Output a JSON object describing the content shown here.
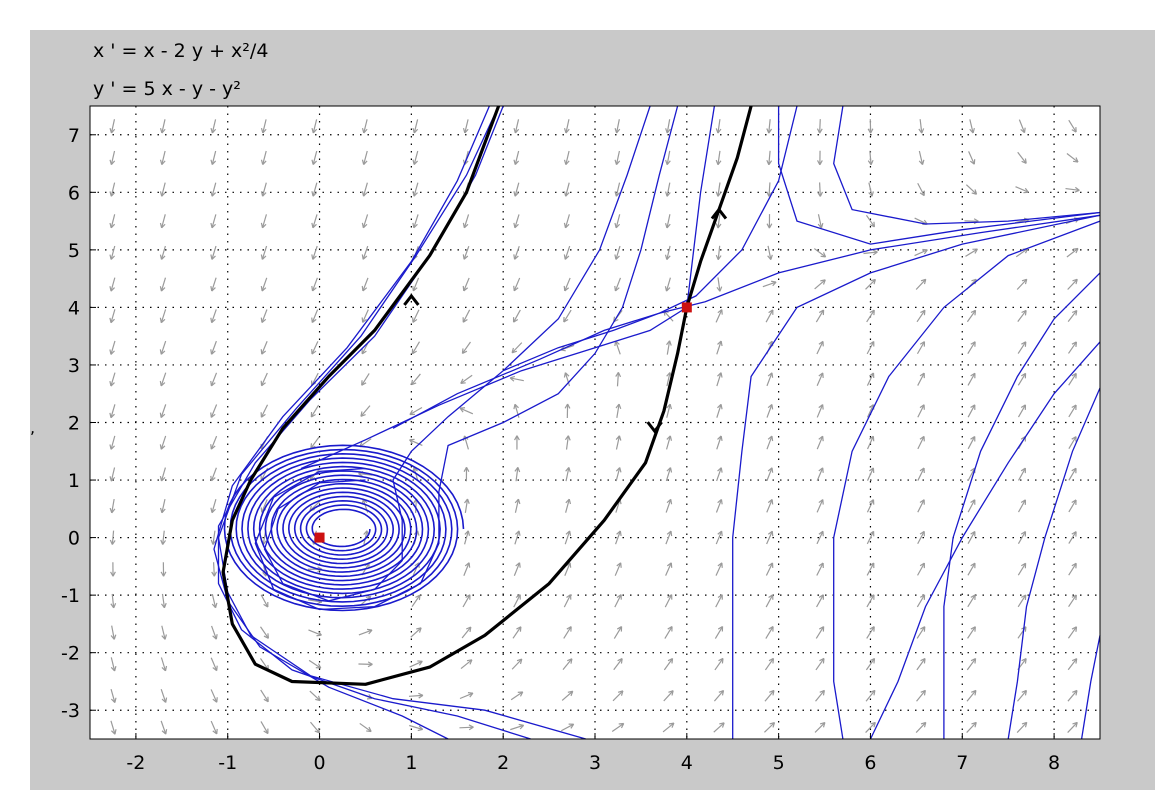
{
  "chart_data": {
    "type": "phase_portrait",
    "title_lines": [
      "x ' = x - 2 y + x²/4",
      "y ' = 5 x - y - y²"
    ],
    "xlim": [
      -2.5,
      8.5
    ],
    "ylim": [
      -3.5,
      7.5
    ],
    "xticks": [
      -2,
      -1,
      0,
      1,
      2,
      3,
      4,
      5,
      6,
      7,
      8
    ],
    "yticks": [
      -3,
      -2,
      -1,
      0,
      1,
      2,
      3,
      4,
      5,
      6,
      7
    ],
    "grid": "dotted",
    "equilibria": [
      {
        "x": 0,
        "y": 0,
        "type": "spiral"
      },
      {
        "x": 4,
        "y": 4,
        "type": "saddle"
      }
    ],
    "separatrix_color": "#000000",
    "trajectory_color": "#1a1acc",
    "equilibrium_color": "#cc1111",
    "arrow_color": "#9a9a9a",
    "separatrices": [
      [
        [
          4.7,
          7.5
        ],
        [
          4.55,
          6.6
        ],
        [
          4.35,
          5.7
        ],
        [
          4.15,
          4.8
        ],
        [
          4.0,
          4.0
        ],
        [
          3.9,
          3.2
        ],
        [
          3.75,
          2.2
        ],
        [
          3.55,
          1.3
        ],
        [
          3.1,
          0.3
        ],
        [
          2.5,
          -0.8
        ],
        [
          1.8,
          -1.7
        ],
        [
          1.2,
          -2.25
        ],
        [
          0.5,
          -2.55
        ],
        [
          -0.3,
          -2.5
        ],
        [
          -0.7,
          -2.2
        ],
        [
          -0.95,
          -1.5
        ],
        [
          -1.05,
          -0.6
        ],
        [
          -0.95,
          0.3
        ],
        [
          -0.75,
          1.0
        ],
        [
          -0.4,
          1.9
        ],
        [
          0.1,
          2.8
        ],
        [
          0.6,
          3.6
        ],
        [
          1.2,
          4.9
        ],
        [
          1.6,
          6.0
        ],
        [
          1.95,
          7.5
        ]
      ]
    ],
    "trajectories": [
      [
        [
          2.0,
          7.5
        ],
        [
          1.7,
          6.3
        ],
        [
          1.2,
          4.9
        ],
        [
          0.6,
          3.5
        ],
        [
          -0.1,
          2.4
        ],
        [
          -0.7,
          1.3
        ],
        [
          -1.1,
          0.2
        ],
        [
          -1.1,
          -0.8
        ],
        [
          -0.85,
          -1.6
        ],
        [
          -0.3,
          -2.3
        ],
        [
          0.6,
          -2.8
        ],
        [
          1.5,
          -3.1
        ],
        [
          2.3,
          -3.5
        ]
      ],
      [
        [
          1.85,
          7.5
        ],
        [
          1.5,
          6.2
        ],
        [
          1.0,
          4.8
        ],
        [
          0.3,
          3.3
        ],
        [
          -0.4,
          2.1
        ],
        [
          -0.95,
          0.9
        ],
        [
          -1.15,
          -0.2
        ],
        [
          -1.0,
          -1.1
        ],
        [
          -0.65,
          -1.9
        ],
        [
          0.1,
          -2.6
        ],
        [
          0.9,
          -3.1
        ],
        [
          1.4,
          -3.5
        ]
      ],
      [
        [
          1.95,
          7.5
        ],
        [
          1.6,
          6.3
        ],
        [
          1.05,
          4.9
        ],
        [
          0.45,
          3.5
        ],
        [
          -0.25,
          2.25
        ],
        [
          -0.85,
          1.1
        ],
        [
          -1.1,
          0.0
        ],
        [
          -1.0,
          -0.95
        ],
        [
          -0.75,
          -1.7
        ],
        [
          -0.1,
          -2.4
        ],
        [
          0.8,
          -2.8
        ],
        [
          1.8,
          -3.0
        ],
        [
          2.9,
          -3.5
        ]
      ],
      [
        [
          3.6,
          7.5
        ],
        [
          3.35,
          6.3
        ],
        [
          3.05,
          5.0
        ],
        [
          2.6,
          3.8
        ],
        [
          2.0,
          2.9
        ],
        [
          1.4,
          2.1
        ],
        [
          1.0,
          1.5
        ],
        [
          0.8,
          1.0
        ],
        [
          0.9,
          0.3
        ],
        [
          0.9,
          -0.4
        ],
        [
          0.6,
          -0.9
        ],
        [
          0.1,
          -1.1
        ],
        [
          -0.4,
          -0.8
        ],
        [
          -0.6,
          -0.2
        ],
        [
          -0.45,
          0.5
        ],
        [
          0.0,
          0.95
        ],
        [
          0.5,
          1.0
        ]
      ],
      [
        [
          3.9,
          7.5
        ],
        [
          3.7,
          6.3
        ],
        [
          3.5,
          5.0
        ],
        [
          3.3,
          4.0
        ],
        [
          3.0,
          3.2
        ],
        [
          2.6,
          2.5
        ],
        [
          2.0,
          2.0
        ],
        [
          1.4,
          1.6
        ],
        [
          1.3,
          0.8
        ],
        [
          1.3,
          -0.1
        ],
        [
          1.1,
          -0.8
        ],
        [
          0.6,
          -1.2
        ],
        [
          0.0,
          -1.25
        ],
        [
          -0.5,
          -0.9
        ],
        [
          -0.7,
          -0.1
        ],
        [
          -0.5,
          0.7
        ],
        [
          0.0,
          1.15
        ],
        [
          0.5,
          1.2
        ]
      ],
      [
        [
          4.3,
          7.5
        ],
        [
          4.15,
          6.0
        ],
        [
          4.0,
          4.0
        ],
        [
          3.6,
          3.6
        ],
        [
          3.0,
          3.3
        ],
        [
          2.2,
          2.9
        ],
        [
          1.3,
          2.3
        ],
        [
          0.5,
          1.7
        ],
        [
          -0.2,
          1.2
        ]
      ],
      [
        [
          5.2,
          7.5
        ],
        [
          5.0,
          6.2
        ],
        [
          4.6,
          5.0
        ],
        [
          4.1,
          4.2
        ],
        [
          3.7,
          3.9
        ],
        [
          3.1,
          3.6
        ],
        [
          2.4,
          3.1
        ],
        [
          1.5,
          2.5
        ],
        [
          0.8,
          1.9
        ]
      ],
      [
        [
          8.5,
          5.6
        ],
        [
          7.2,
          5.3
        ],
        [
          6.0,
          5.0
        ],
        [
          5.0,
          4.6
        ],
        [
          4.2,
          4.1
        ],
        [
          3.7,
          3.9
        ],
        [
          3.2,
          3.6
        ],
        [
          2.6,
          3.3
        ],
        [
          2.0,
          2.9
        ]
      ],
      [
        [
          4.5,
          -3.5
        ],
        [
          4.5,
          -2.5
        ],
        [
          4.5,
          -1.2
        ],
        [
          4.5,
          0.0
        ],
        [
          4.6,
          1.5
        ],
        [
          4.7,
          2.8
        ],
        [
          5.2,
          4.0
        ],
        [
          6.0,
          4.6
        ],
        [
          7.0,
          5.1
        ],
        [
          8.5,
          5.6
        ]
      ],
      [
        [
          5.7,
          -3.5
        ],
        [
          5.6,
          -2.5
        ],
        [
          5.6,
          -1.2
        ],
        [
          5.6,
          0.0
        ],
        [
          5.8,
          1.5
        ],
        [
          6.2,
          2.8
        ],
        [
          6.8,
          4.0
        ],
        [
          7.5,
          4.9
        ],
        [
          8.5,
          5.5
        ]
      ],
      [
        [
          6.8,
          -3.5
        ],
        [
          6.8,
          -2.5
        ],
        [
          6.8,
          -1.2
        ],
        [
          6.9,
          0.0
        ],
        [
          7.2,
          1.5
        ],
        [
          7.6,
          2.8
        ],
        [
          8.0,
          3.8
        ],
        [
          8.5,
          4.6
        ]
      ],
      [
        [
          7.5,
          -3.5
        ],
        [
          7.6,
          -2.5
        ],
        [
          7.7,
          -1.2
        ],
        [
          7.9,
          0.0
        ],
        [
          8.2,
          1.5
        ],
        [
          8.5,
          2.6
        ]
      ],
      [
        [
          8.3,
          -3.5
        ],
        [
          8.4,
          -2.5
        ],
        [
          8.5,
          -1.7
        ]
      ],
      [
        [
          5.0,
          7.5
        ],
        [
          5.0,
          6.5
        ],
        [
          5.2,
          5.5
        ],
        [
          6.0,
          5.1
        ],
        [
          7.0,
          5.35
        ],
        [
          8.5,
          5.65
        ]
      ],
      [
        [
          5.7,
          7.5
        ],
        [
          5.6,
          6.5
        ],
        [
          5.8,
          5.7
        ],
        [
          6.6,
          5.45
        ],
        [
          7.5,
          5.5
        ],
        [
          8.5,
          5.65
        ]
      ],
      [
        [
          6.0,
          -3.5
        ],
        [
          6.3,
          -2.5
        ],
        [
          6.6,
          -1.2
        ],
        [
          7.0,
          0.0
        ],
        [
          7.5,
          1.3
        ],
        [
          8.0,
          2.5
        ],
        [
          8.5,
          3.4
        ]
      ]
    ],
    "spiral": {
      "center": [
        0,
        0
      ],
      "outer_rx": 1.55,
      "outer_ry": 1.55,
      "inner_rx": 0.35,
      "inner_ry": 0.3,
      "turns": 16
    }
  }
}
